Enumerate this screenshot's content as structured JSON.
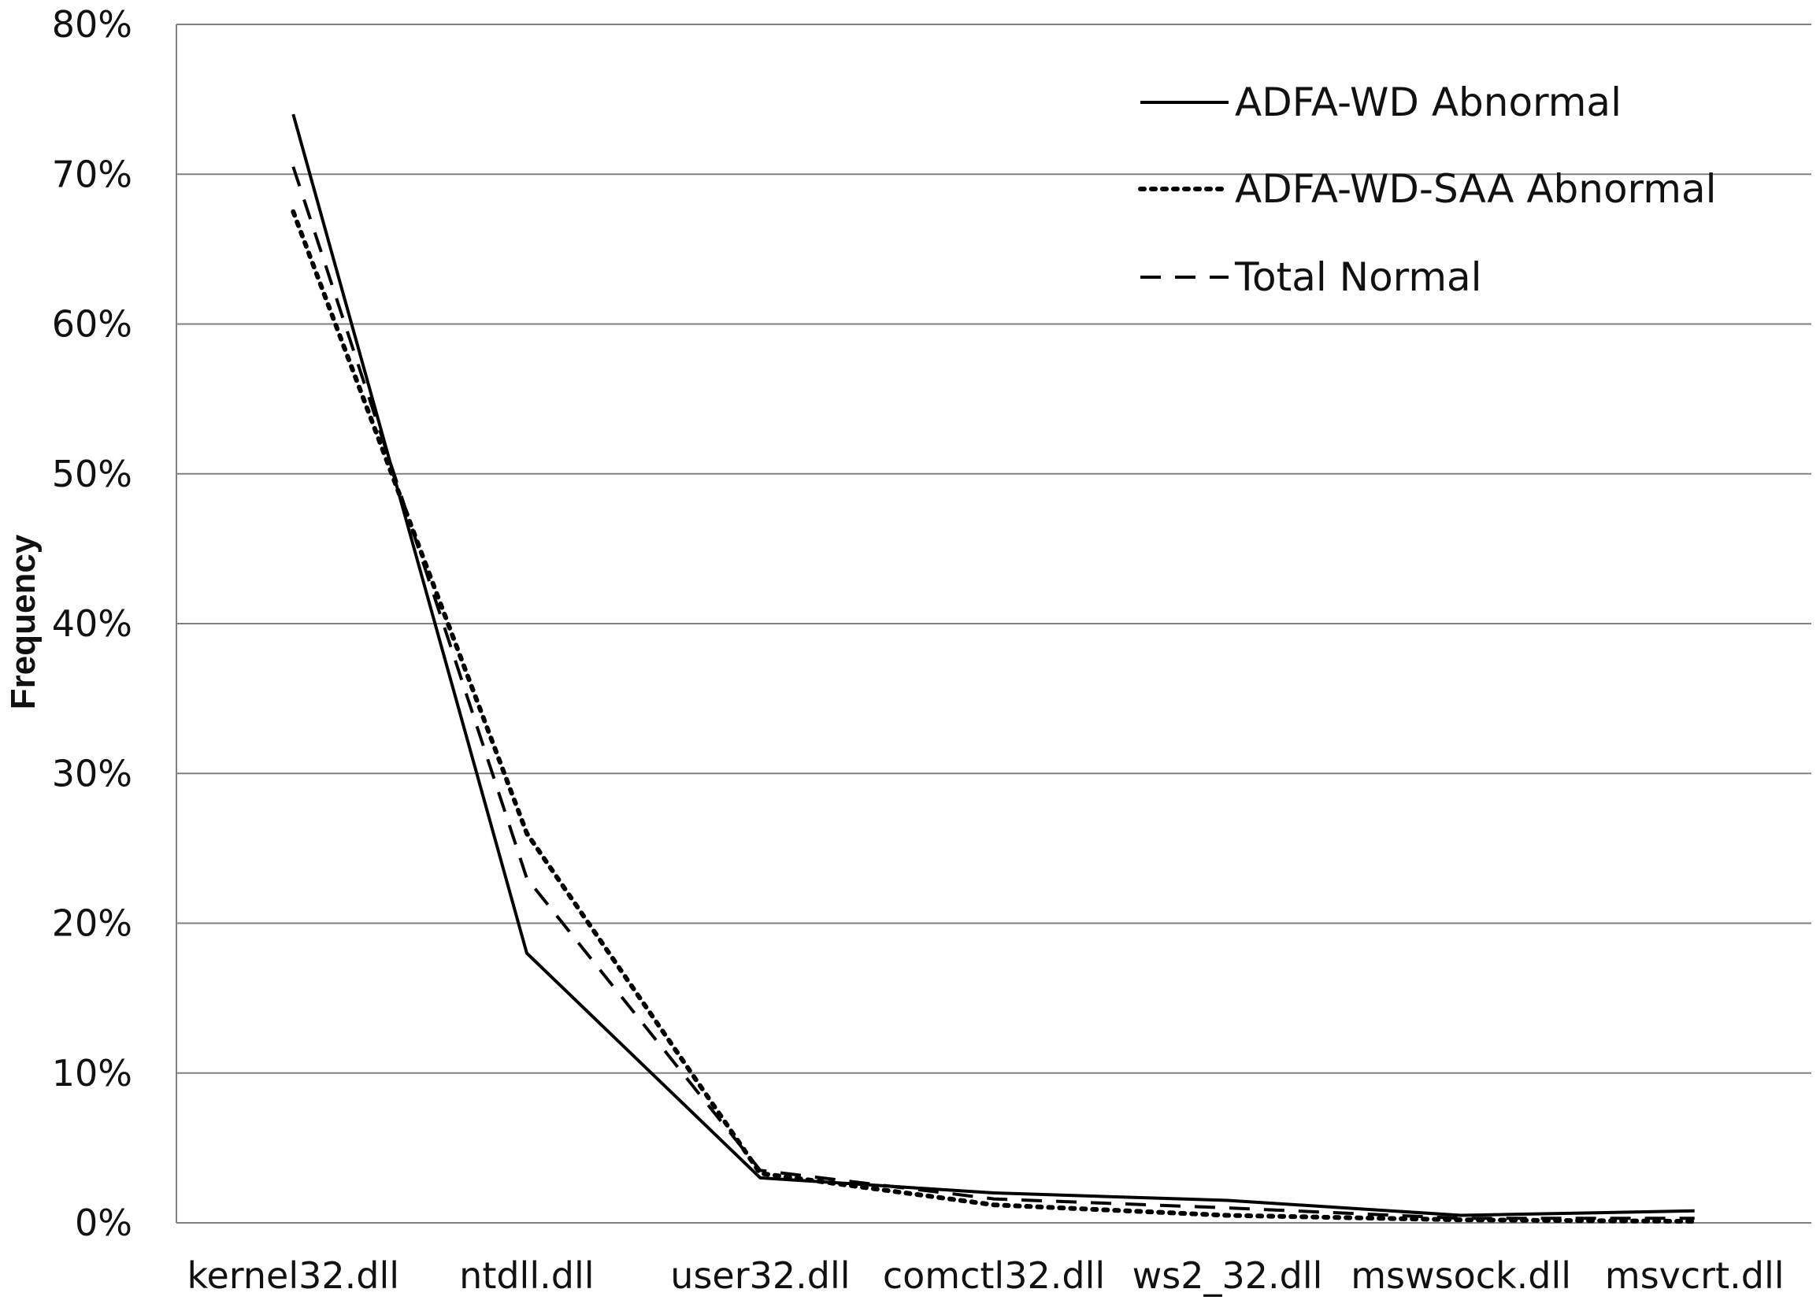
{
  "chart_data": {
    "type": "line",
    "title": "",
    "xlabel": "",
    "ylabel": "Frequency",
    "ylim": [
      0,
      80
    ],
    "y_ticks": [
      "0%",
      "10%",
      "20%",
      "30%",
      "40%",
      "50%",
      "60%",
      "70%",
      "80%"
    ],
    "categories": [
      "kernel32.dll",
      "ntdll.dll",
      "user32.dll",
      "comctl32.dll",
      "ws2_32.dll",
      "mswsock.dll",
      "msvcrt.dll"
    ],
    "grid": true,
    "legend_position": "top-right",
    "series": [
      {
        "name": "ADFA-WD Abnormal",
        "style": "solid",
        "values": [
          74,
          18,
          3,
          2,
          1.5,
          0.5,
          0.8
        ]
      },
      {
        "name": "ADFA-WD-SAA Abnormal",
        "style": "dotted",
        "values": [
          67.5,
          26,
          3.3,
          1.2,
          0.5,
          0.2,
          0.1
        ]
      },
      {
        "name": "Total Normal",
        "style": "dashed",
        "values": [
          70.5,
          23,
          3.5,
          1.6,
          1,
          0.3,
          0.3
        ]
      }
    ],
    "colors": {
      "line": "#000000",
      "grid": "#808080",
      "axis": "#808080"
    }
  }
}
